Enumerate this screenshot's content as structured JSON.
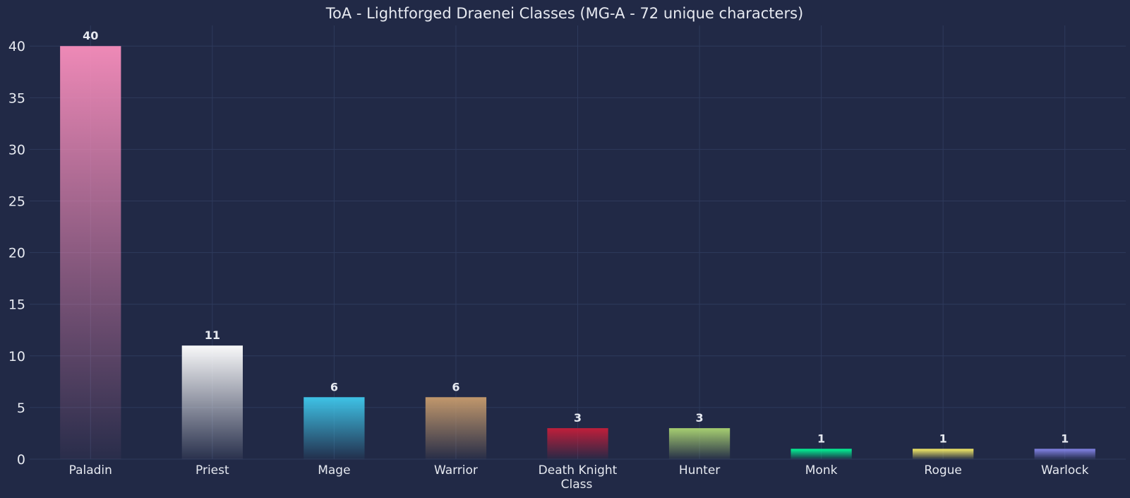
{
  "chart_data": {
    "type": "bar",
    "title": "ToA - Lightforged Draenei Classes (MG-A - 72 unique characters)",
    "xlabel": "Class",
    "ylabel": "",
    "ylim": [
      0,
      42
    ],
    "yticks": [
      0,
      5,
      10,
      15,
      20,
      25,
      30,
      35,
      40
    ],
    "grid": true,
    "categories": [
      "Paladin",
      "Priest",
      "Mage",
      "Warrior",
      "Death Knight",
      "Hunter",
      "Monk",
      "Rogue",
      "Warlock"
    ],
    "values": [
      40,
      11,
      6,
      6,
      3,
      3,
      1,
      1,
      1
    ],
    "colors": [
      "#F48CBA",
      "#FFFFFF",
      "#3FC7EB",
      "#C69B6D",
      "#C41E3A",
      "#AAD372",
      "#00FF98",
      "#FFF468",
      "#8788EE"
    ],
    "background": "#212946"
  }
}
